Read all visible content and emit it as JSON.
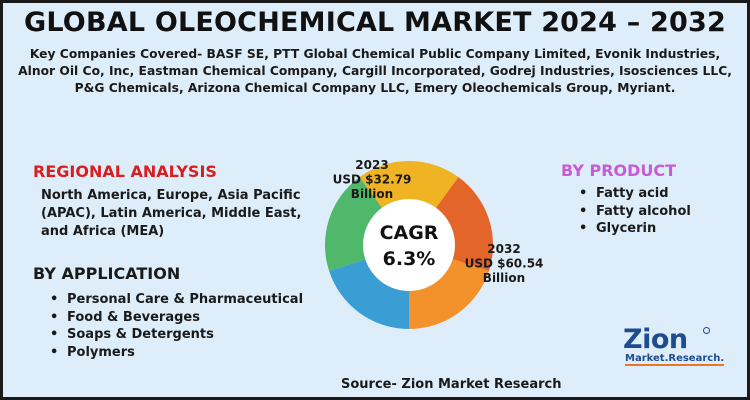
{
  "title": "GLOBAL OLEOCHEMICAL MARKET 2024 – 2032",
  "companies": "Key Companies Covered- BASF SE, PTT Global Chemical Public Company Limited, Evonik Industries, Alnor Oil Co, Inc, Eastman Chemical Company, Cargill Incorporated, Godrej Industries, Isosciences LLC, P&G Chemicals, Arizona Chemical Company LLC, Emery Oleochemicals Group, Myriant.",
  "regional": {
    "heading": "REGIONAL ANALYSIS",
    "text": "North America, Europe, Asia Pacific (APAC), Latin America, Middle East, and Africa (MEA)"
  },
  "application": {
    "heading": "BY APPLICATION",
    "items": [
      "Personal Care & Pharmaceutical",
      "Food & Beverages",
      "Soaps & Detergents",
      "Polymers"
    ]
  },
  "product": {
    "heading": "BY PRODUCT",
    "items": [
      "Fatty acid",
      "Fatty alcohol",
      "Glycerin"
    ]
  },
  "source": "Source- Zion Market Research",
  "logo": {
    "main": "Zion",
    "sub": "Market.Research."
  },
  "colors": {
    "background": "#ddeefa",
    "regional_heading": "#d81e1e",
    "product_heading": "#c75bd6",
    "brand": "#1f4b8f"
  },
  "chart_data": {
    "type": "pie",
    "donut": true,
    "center_text": [
      "CAGR",
      "6.3%"
    ],
    "slices": [
      {
        "value": 20,
        "color": "#e3652a"
      },
      {
        "value": 20,
        "color": "#f3922b"
      },
      {
        "value": 20,
        "color": "#3a9ed5"
      },
      {
        "value": 20,
        "color": "#4fb86a"
      },
      {
        "value": 20,
        "color": "#f0b323"
      }
    ],
    "annotations": [
      {
        "lines": [
          "2023",
          "USD $32.79",
          "Billion"
        ]
      },
      {
        "lines": [
          "2032",
          "USD $60.54",
          "Billion"
        ]
      }
    ]
  }
}
